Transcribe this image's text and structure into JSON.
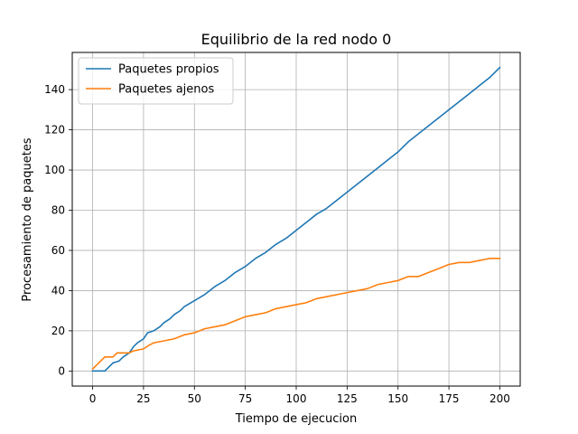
{
  "chart_data": {
    "type": "line",
    "title": "Equilibrio de la red nodo 0",
    "xlabel": "Tiempo de ejecucion",
    "ylabel": "Procesamiento de paquetes",
    "xlim": [
      -10,
      210
    ],
    "ylim": [
      -7.5,
      158.5
    ],
    "xticks": [
      0,
      25,
      50,
      75,
      100,
      125,
      150,
      175,
      200
    ],
    "yticks": [
      0,
      20,
      40,
      60,
      80,
      100,
      120,
      140
    ],
    "grid": true,
    "legend_position": "top-left",
    "series": [
      {
        "name": "Paquetes propios",
        "color": "#1f77b4",
        "points": [
          [
            0,
            0
          ],
          [
            6,
            0
          ],
          [
            8,
            2
          ],
          [
            10,
            4
          ],
          [
            13,
            5
          ],
          [
            15,
            7
          ],
          [
            18,
            9
          ],
          [
            20,
            12
          ],
          [
            22,
            14
          ],
          [
            25,
            16
          ],
          [
            27,
            19
          ],
          [
            30,
            20
          ],
          [
            33,
            22
          ],
          [
            35,
            24
          ],
          [
            38,
            26
          ],
          [
            40,
            28
          ],
          [
            43,
            30
          ],
          [
            45,
            32
          ],
          [
            50,
            35
          ],
          [
            55,
            38
          ],
          [
            60,
            42
          ],
          [
            65,
            45
          ],
          [
            70,
            49
          ],
          [
            75,
            52
          ],
          [
            80,
            56
          ],
          [
            85,
            59
          ],
          [
            90,
            63
          ],
          [
            95,
            66
          ],
          [
            100,
            70
          ],
          [
            105,
            74
          ],
          [
            110,
            78
          ],
          [
            115,
            81
          ],
          [
            120,
            85
          ],
          [
            125,
            89
          ],
          [
            130,
            93
          ],
          [
            135,
            97
          ],
          [
            140,
            101
          ],
          [
            145,
            105
          ],
          [
            150,
            109
          ],
          [
            155,
            114
          ],
          [
            160,
            118
          ],
          [
            165,
            122
          ],
          [
            170,
            126
          ],
          [
            175,
            130
          ],
          [
            180,
            134
          ],
          [
            185,
            138
          ],
          [
            190,
            142
          ],
          [
            195,
            146
          ],
          [
            200,
            151
          ]
        ]
      },
      {
        "name": "Paquetes ajenos",
        "color": "#ff7f0e",
        "points": [
          [
            0,
            1
          ],
          [
            2,
            3
          ],
          [
            4,
            5
          ],
          [
            6,
            7
          ],
          [
            10,
            7
          ],
          [
            12,
            9
          ],
          [
            18,
            9
          ],
          [
            20,
            10
          ],
          [
            25,
            11
          ],
          [
            28,
            13
          ],
          [
            30,
            14
          ],
          [
            35,
            15
          ],
          [
            40,
            16
          ],
          [
            45,
            18
          ],
          [
            50,
            19
          ],
          [
            55,
            21
          ],
          [
            60,
            22
          ],
          [
            65,
            23
          ],
          [
            70,
            25
          ],
          [
            75,
            27
          ],
          [
            80,
            28
          ],
          [
            85,
            29
          ],
          [
            90,
            31
          ],
          [
            95,
            32
          ],
          [
            100,
            33
          ],
          [
            105,
            34
          ],
          [
            110,
            36
          ],
          [
            115,
            37
          ],
          [
            120,
            38
          ],
          [
            125,
            39
          ],
          [
            130,
            40
          ],
          [
            135,
            41
          ],
          [
            140,
            43
          ],
          [
            145,
            44
          ],
          [
            150,
            45
          ],
          [
            155,
            47
          ],
          [
            160,
            47
          ],
          [
            165,
            49
          ],
          [
            170,
            51
          ],
          [
            175,
            53
          ],
          [
            180,
            54
          ],
          [
            185,
            54
          ],
          [
            190,
            55
          ],
          [
            195,
            56
          ],
          [
            200,
            56
          ]
        ]
      }
    ]
  }
}
